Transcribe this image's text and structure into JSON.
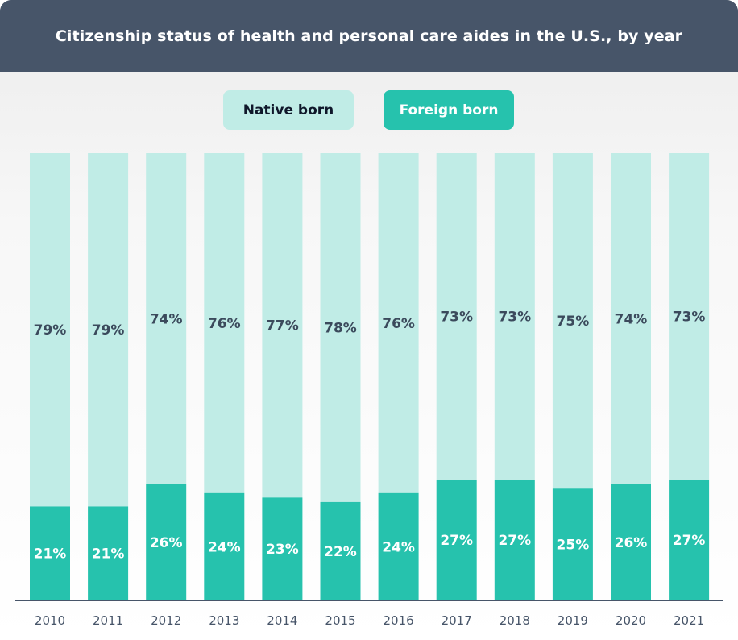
{
  "title": "Citizenship status of health and personal care aides in the U.S., by year",
  "colors": {
    "header_bg": "#475569",
    "native": "#c0ece6",
    "foreign": "#26c2ad",
    "native_label": "#3b4a5c",
    "foreign_label": "#ffffff",
    "axis": "#475569"
  },
  "chart_data": {
    "type": "bar",
    "stacked": true,
    "title": "Citizenship status of health and personal care aides in the U.S., by year",
    "categories": [
      "2010",
      "2011",
      "2012",
      "2013",
      "2014",
      "2015",
      "2016",
      "2017",
      "2018",
      "2019",
      "2020",
      "2021"
    ],
    "series": [
      {
        "name": "Native born",
        "values": [
          79,
          79,
          74,
          76,
          77,
          78,
          76,
          73,
          73,
          75,
          74,
          73
        ],
        "labels": [
          "79%",
          "79%",
          "74%",
          "76%",
          "77%",
          "78%",
          "76%",
          "73%",
          "73%",
          "75%",
          "74%",
          "73%"
        ]
      },
      {
        "name": "Foreign born",
        "values": [
          21,
          21,
          26,
          24,
          23,
          22,
          24,
          27,
          27,
          25,
          26,
          27
        ],
        "labels": [
          "21%",
          "21%",
          "26%",
          "24%",
          "23%",
          "22%",
          "24%",
          "27%",
          "27%",
          "25%",
          "26%",
          "27%"
        ]
      }
    ],
    "ylim": [
      0,
      100
    ],
    "legend": "top-center",
    "grid": false
  }
}
